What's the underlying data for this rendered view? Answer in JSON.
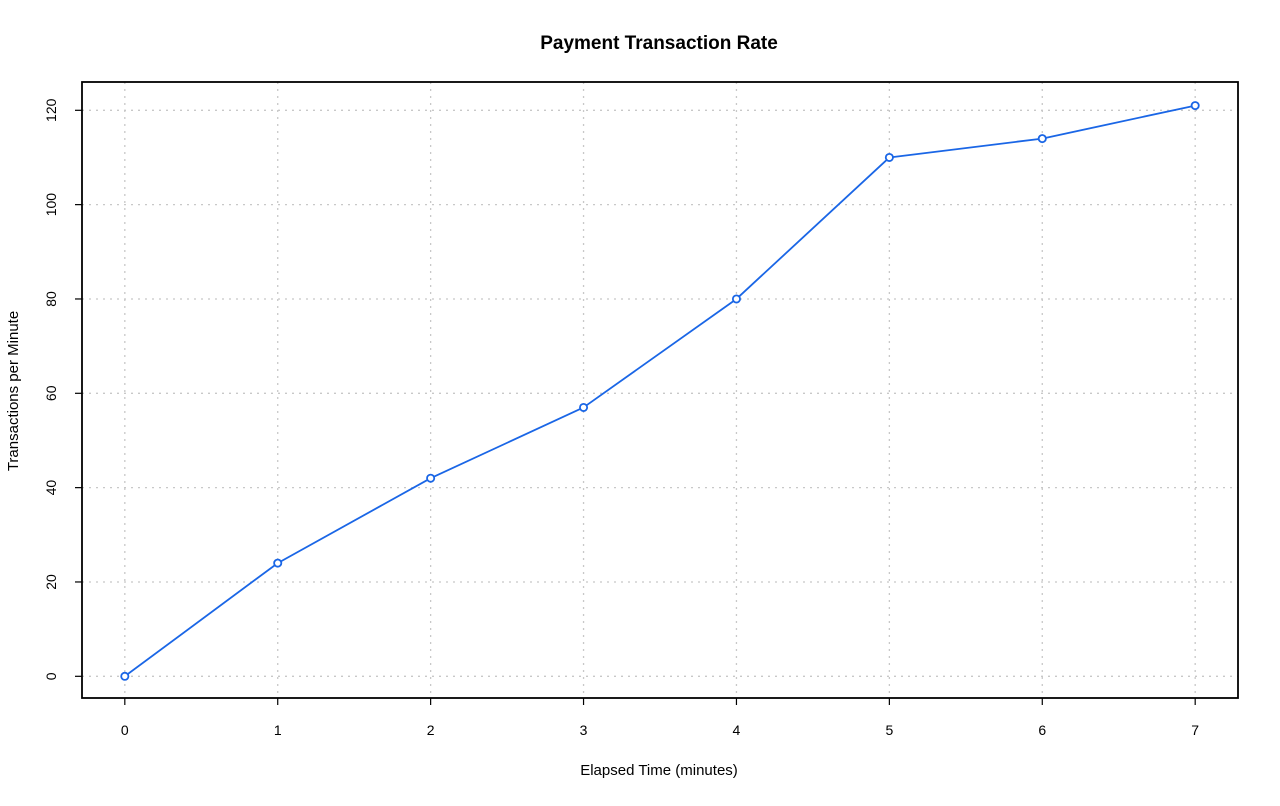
{
  "chart_data": {
    "type": "line",
    "title": "Payment Transaction Rate",
    "xlabel": "Elapsed Time (minutes)",
    "ylabel": "Transactions per Minute",
    "x": [
      0,
      1,
      2,
      3,
      4,
      5,
      6,
      7
    ],
    "series": [
      {
        "values": [
          0,
          24,
          42,
          57,
          80,
          110,
          114,
          121
        ],
        "color": "#1a66e6",
        "marker": "open-circle"
      }
    ],
    "xticks": [
      0,
      1,
      2,
      3,
      4,
      5,
      6,
      7
    ],
    "yticks": [
      0,
      20,
      40,
      60,
      80,
      100,
      120
    ],
    "xlim": [
      -0.28,
      7.28
    ],
    "ylim": [
      -4.6,
      126
    ],
    "grid": true,
    "legend": "none"
  }
}
